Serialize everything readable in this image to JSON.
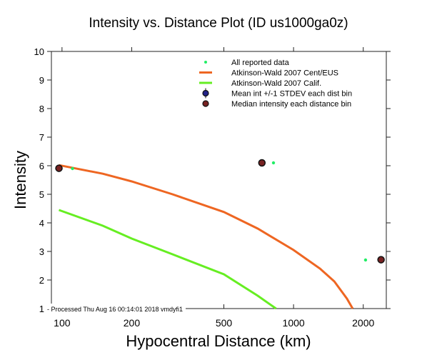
{
  "chart_data": {
    "type": "scatter",
    "title": "Intensity vs. Distance Plot (ID us1000ga0z)",
    "xlabel": "Hypocentral Distance (km)",
    "ylabel": "Intensity",
    "xscale": "log",
    "xlim": [
      90,
      2515
    ],
    "ylim": [
      1,
      10
    ],
    "xticks": [
      100,
      200,
      500,
      1000,
      2000
    ],
    "xtick_labels": [
      "100",
      "200",
      "500",
      "1000",
      "2000"
    ],
    "yticks": [
      1,
      2,
      3,
      4,
      5,
      6,
      7,
      8,
      9,
      10
    ],
    "ytick_labels": [
      "1",
      "2",
      "3",
      "4",
      "5",
      "6",
      "7",
      "8",
      "9",
      "10"
    ],
    "grid": false,
    "legend_position": "top-right",
    "footnote": "Processed Thu Aug 16 00:14:01 2018 vmdyfi1",
    "series": [
      {
        "name": "All reported data",
        "kind": "points",
        "color": "#22ee66",
        "x": [
          111,
          819,
          2046
        ],
        "y": [
          5.9,
          6.1,
          2.7
        ]
      },
      {
        "name": "Atkinson-Wald 2007 Cent/EUS",
        "kind": "line",
        "color": "#ee6622",
        "x": [
          97,
          150,
          200,
          300,
          500,
          700,
          1000,
          1300,
          1500,
          1700,
          1800
        ],
        "y": [
          6.02,
          5.72,
          5.45,
          5.0,
          4.38,
          3.8,
          3.05,
          2.4,
          1.95,
          1.35,
          1.0
        ]
      },
      {
        "name": "Atkinson-Wald 2007 Calif.",
        "kind": "line",
        "color": "#66ee22",
        "x": [
          97,
          150,
          200,
          300,
          500,
          700,
          840
        ],
        "y": [
          4.45,
          3.9,
          3.45,
          2.9,
          2.2,
          1.45,
          1.0
        ]
      },
      {
        "name": "Mean int +/-1 STDEV each dist bin",
        "kind": "errorbar",
        "color": "#222288",
        "x": [],
        "y": []
      },
      {
        "name": "Median intensity each distance bin",
        "kind": "points",
        "color": "#772222",
        "x": [
          97,
          730,
          2387
        ],
        "y": [
          5.91,
          6.1,
          2.71
        ]
      }
    ]
  }
}
